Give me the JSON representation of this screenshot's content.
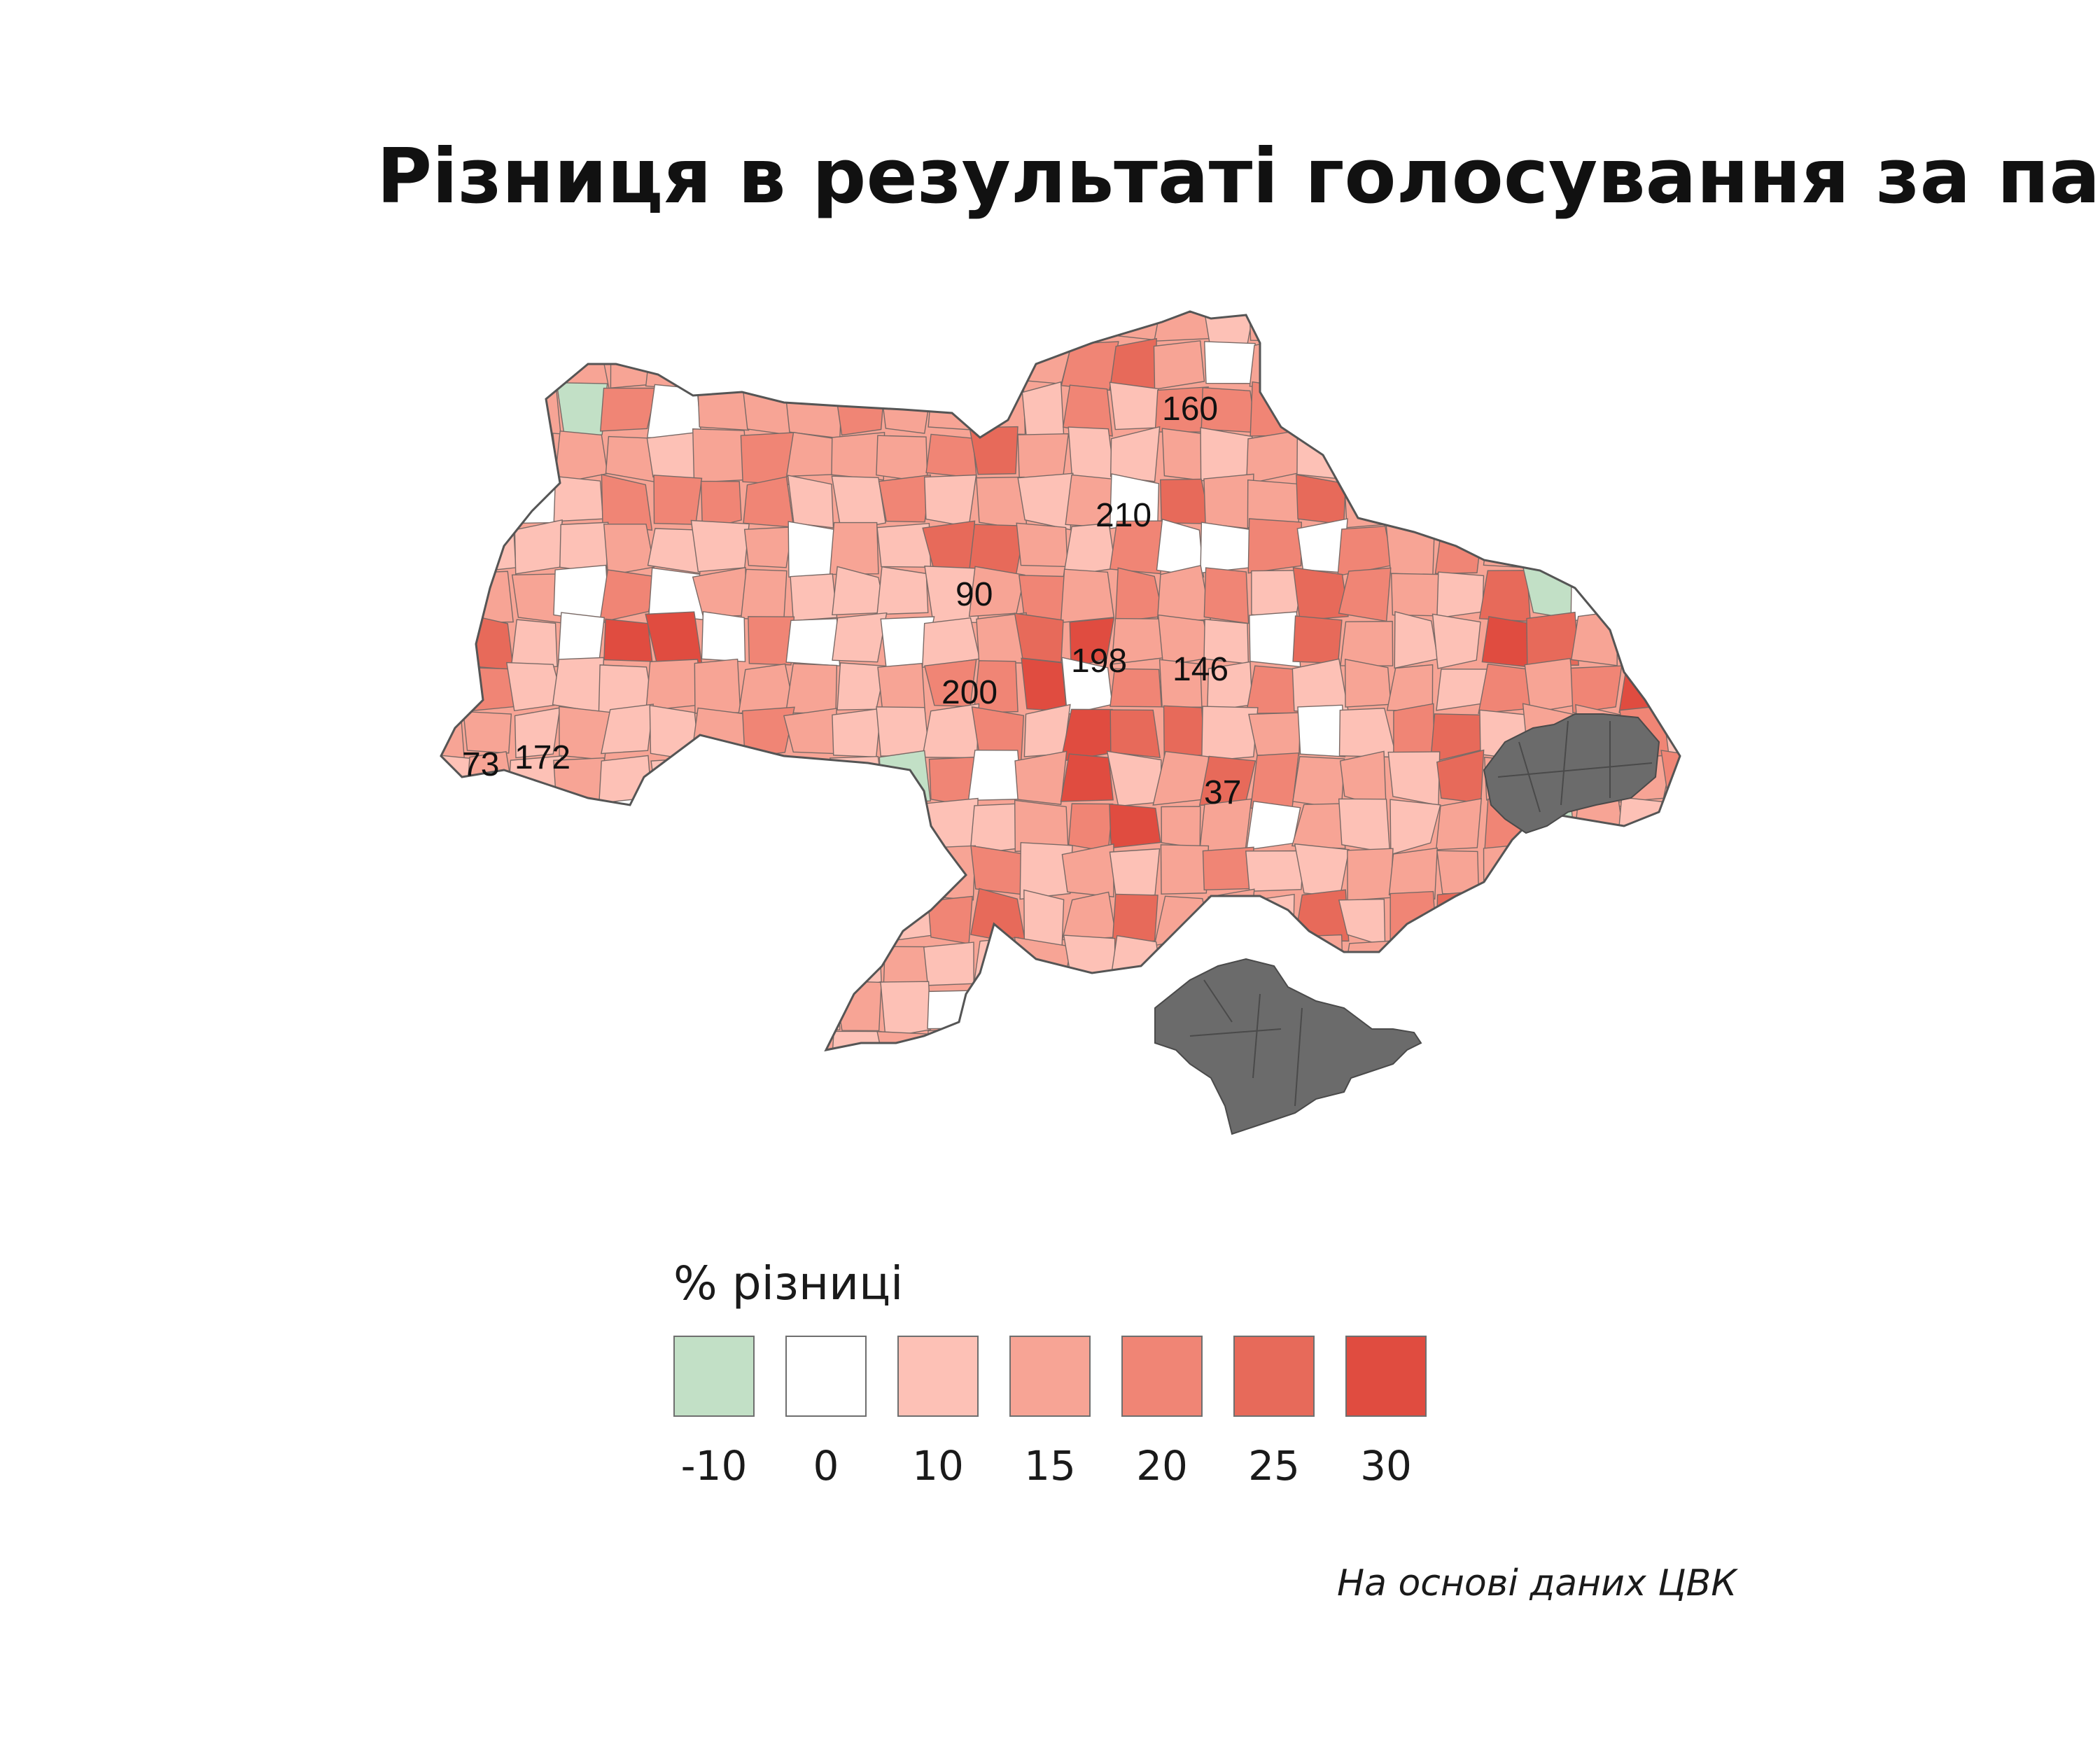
{
  "title": "Різниця в результаті голосування за партію С",
  "map": {
    "labels": [
      {
        "text": "160"
      },
      {
        "text": "210"
      },
      {
        "text": "90"
      },
      {
        "text": "198"
      },
      {
        "text": "146"
      },
      {
        "text": "200"
      },
      {
        "text": "73"
      },
      {
        "text": "172"
      },
      {
        "text": "37"
      }
    ]
  },
  "legend": {
    "title": "% різниці",
    "items": [
      {
        "label": "-10",
        "color": "#c2e0c6"
      },
      {
        "label": "0",
        "color": "#ffffff"
      },
      {
        "label": "10",
        "color": "#fdc1b6"
      },
      {
        "label": "15",
        "color": "#f7a495"
      },
      {
        "label": "20",
        "color": "#f08575"
      },
      {
        "label": "25",
        "color": "#e76a5a"
      },
      {
        "label": "30",
        "color": "#e04c40"
      }
    ],
    "no_data_color": "#6b6b6b"
  },
  "source": "На основі даних ЦВК"
}
